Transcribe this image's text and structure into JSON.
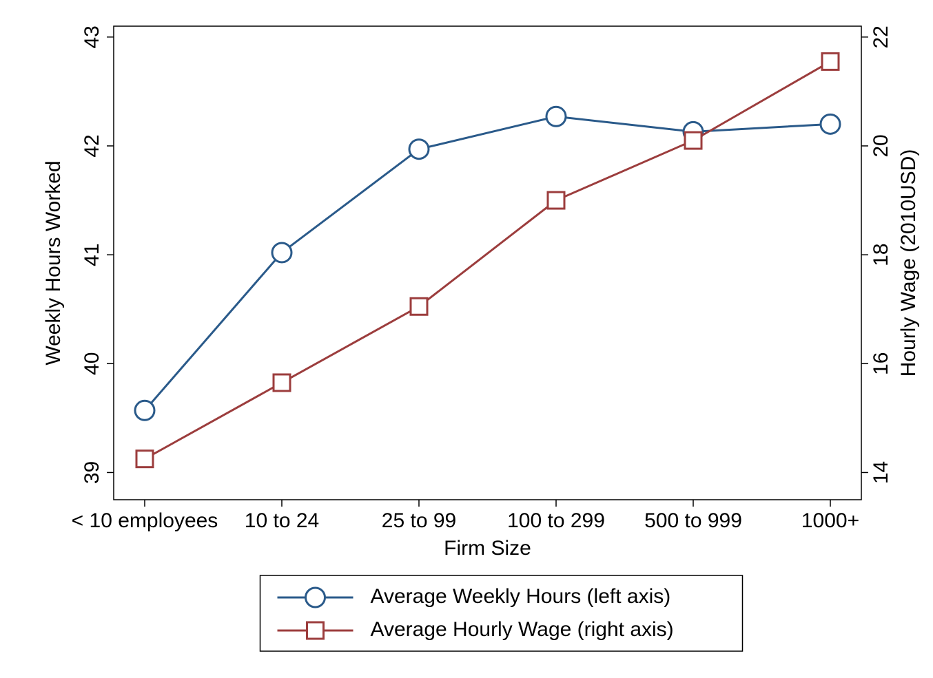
{
  "chart": {
    "type": "line-dual-axis",
    "background_color": "#ffffff",
    "plot_border_color": "#000000",
    "plot_border_width": 1.5,
    "x": {
      "label": "Firm Size",
      "categories": [
        "< 10 employees",
        "10 to 24",
        "25 to 99",
        "100 to 299",
        "500 to 999",
        "1000+"
      ],
      "label_fontsize": 30,
      "tick_fontsize": 30
    },
    "y_left": {
      "label": "Weekly Hours Worked",
      "min": 38.75,
      "max": 43.1,
      "ticks": [
        39,
        40,
        41,
        42,
        43
      ],
      "label_fontsize": 30,
      "tick_fontsize": 30
    },
    "y_right": {
      "label": "Hourly Wage (2010USD)",
      "min": 13.5,
      "max": 22.2,
      "ticks": [
        14,
        16,
        18,
        20,
        22
      ],
      "label_fontsize": 30,
      "tick_fontsize": 30
    },
    "series": [
      {
        "name": "Average Weekly Hours (left axis)",
        "axis": "left",
        "values": [
          39.57,
          41.02,
          41.97,
          42.27,
          42.13,
          42.2
        ],
        "line_color": "#2a5a8a",
        "line_width": 3,
        "marker": "circle",
        "marker_size": 14,
        "marker_stroke": "#2a5a8a",
        "marker_fill": "none",
        "marker_stroke_width": 3
      },
      {
        "name": "Average Hourly Wage (right axis)",
        "axis": "right",
        "values": [
          14.25,
          15.65,
          17.05,
          19.0,
          20.1,
          21.55
        ],
        "line_color": "#9c3d3d",
        "line_width": 3,
        "marker": "square",
        "marker_size": 24,
        "marker_stroke": "#9c3d3d",
        "marker_fill": "none",
        "marker_stroke_width": 3
      }
    ],
    "legend": {
      "position": "bottom-center",
      "border_color": "#000000",
      "border_width": 1.5,
      "fontsize": 30
    }
  }
}
